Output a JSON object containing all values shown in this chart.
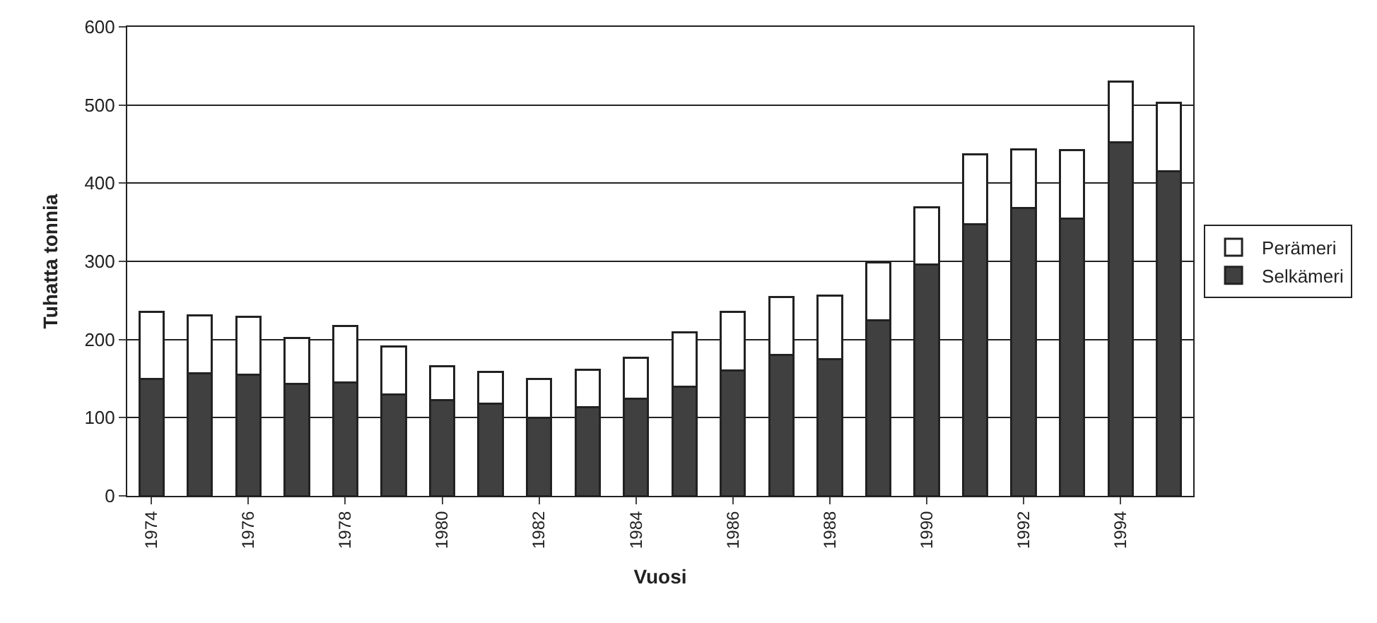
{
  "chart_data": {
    "type": "bar",
    "stacked": true,
    "xlabel": "Vuosi",
    "ylabel": "Tuhatta tonnia",
    "categories": [
      "1974",
      null,
      "1976",
      null,
      "1978",
      null,
      "1980",
      null,
      "1982",
      null,
      "1984",
      null,
      "1986",
      null,
      "1988",
      null,
      "1990",
      null,
      "1992",
      null,
      "1994",
      null
    ],
    "series": [
      {
        "name": "Selkämeri",
        "color": "#404040",
        "values": [
          150,
          157,
          155,
          143,
          145,
          130,
          122,
          118,
          100,
          113,
          124,
          140,
          160,
          180,
          175,
          225,
          296,
          347,
          368,
          355,
          452,
          415
        ]
      },
      {
        "name": "Perämeri",
        "color": "#ffffff",
        "values": [
          85,
          74,
          74,
          59,
          72,
          61,
          44,
          41,
          50,
          48,
          53,
          69,
          75,
          74,
          81,
          74,
          73,
          90,
          75,
          87,
          78,
          88
        ]
      }
    ],
    "ylim": [
      0,
      600
    ],
    "yticks": [
      0,
      100,
      200,
      300,
      400,
      500,
      600
    ],
    "grid": "y",
    "legend": "right"
  }
}
